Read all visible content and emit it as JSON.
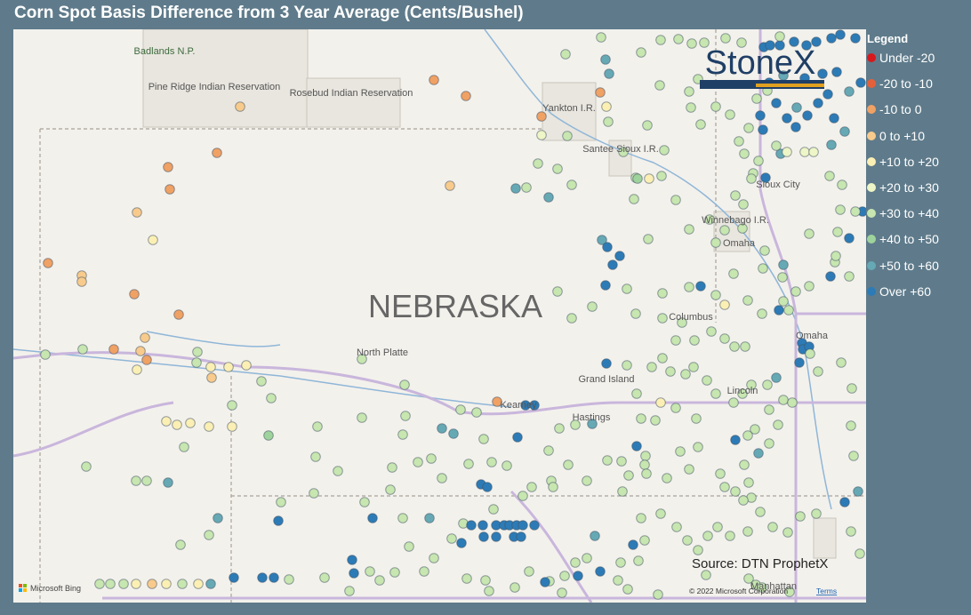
{
  "header": {
    "title": "Corn Spot Basis Difference from 3 Year Average (Cents/Bushel)"
  },
  "legend": {
    "title": "Legend",
    "items": [
      {
        "label": "Under -20",
        "color": "#d7191c"
      },
      {
        "label": "-20 to -10",
        "color": "#e4603a"
      },
      {
        "label": "-10 to 0",
        "color": "#f0a164"
      },
      {
        "label": "0 to +10",
        "color": "#f8cb8c"
      },
      {
        "label": "+10 to +20",
        "color": "#fbefb4"
      },
      {
        "label": "+20 to +30",
        "color": "#eef5c6"
      },
      {
        "label": "+30 to +40",
        "color": "#c7e6b0"
      },
      {
        "label": "+40 to +50",
        "color": "#9fd39c"
      },
      {
        "label": "+50 to +60",
        "color": "#66a9b5"
      },
      {
        "label": "Over +60",
        "color": "#2c7bb6"
      }
    ]
  },
  "map": {
    "labels": [
      "Badlands N.P.",
      "Pine Ridge Indian Reservation",
      "Rosebud Indian Reservation",
      "Yankton I.R.",
      "Santee Sioux I.R.",
      "Sioux City",
      "Winnebago I.R.",
      "Omaha",
      "NEBRASKA",
      "North Platte",
      "Columbus",
      "Omaha",
      "Grand Island",
      "Kearney",
      "Hastings",
      "Lincoln",
      "Manhattan"
    ],
    "logo": "StoneX",
    "source": "Source: DTN ProphetX",
    "copyright": "© 2022 Microsoft Corporation",
    "terms": "Terms",
    "provider": "Microsoft Bing"
  }
}
